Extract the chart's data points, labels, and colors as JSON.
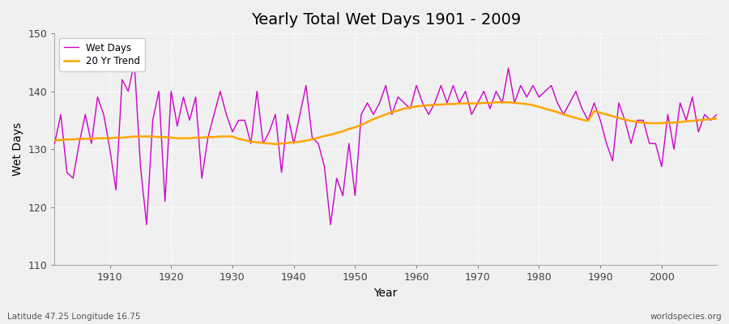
{
  "title": "Yearly Total Wet Days 1901 - 2009",
  "xlabel": "Year",
  "ylabel": "Wet Days",
  "lat_lon_label": "Latitude 47.25 Longitude 16.75",
  "watermark": "worldspecies.org",
  "ylim": [
    110,
    150
  ],
  "xlim": [
    1901,
    2009
  ],
  "yticks": [
    110,
    120,
    130,
    140,
    150
  ],
  "xticks": [
    1910,
    1920,
    1930,
    1940,
    1950,
    1960,
    1970,
    1980,
    1990,
    2000
  ],
  "bg_color": "#f0f0f0",
  "plot_bg_color": "#f0f0f0",
  "wet_days_color": "#cc00cc",
  "trend_color": "#ffa500",
  "wet_days_linewidth": 1.0,
  "trend_linewidth": 1.8,
  "wet_days": [
    131,
    136,
    126,
    125,
    131,
    136,
    131,
    139,
    136,
    130,
    123,
    142,
    140,
    145,
    127,
    117,
    135,
    140,
    121,
    140,
    134,
    139,
    135,
    139,
    125,
    132,
    136,
    140,
    136,
    133,
    135,
    135,
    131,
    140,
    131,
    133,
    136,
    126,
    136,
    131,
    136,
    141,
    132,
    131,
    127,
    117,
    125,
    122,
    131,
    122,
    136,
    138,
    136,
    138,
    141,
    136,
    139,
    138,
    137,
    141,
    138,
    136,
    138,
    141,
    138,
    141,
    138,
    140,
    136,
    138,
    140,
    137,
    140,
    138,
    144,
    138,
    141,
    139,
    141,
    139,
    140,
    141,
    138,
    136,
    138,
    140,
    137,
    135,
    138,
    135,
    131,
    128,
    138,
    135,
    131,
    135,
    135,
    131,
    131,
    127,
    136,
    130,
    138,
    135,
    139,
    133,
    136,
    135,
    136
  ],
  "trend": [
    131.5,
    131.6,
    131.7,
    131.7,
    131.8,
    131.8,
    131.8,
    131.9,
    131.9,
    131.9,
    132.0,
    132.0,
    132.1,
    132.2,
    132.2,
    132.2,
    132.2,
    132.1,
    132.1,
    132.0,
    131.9,
    131.9,
    131.9,
    132.0,
    132.0,
    132.1,
    132.1,
    132.2,
    132.2,
    132.2,
    131.8,
    131.6,
    131.3,
    131.2,
    131.1,
    131.0,
    130.9,
    131.0,
    131.1,
    131.2,
    131.3,
    131.5,
    131.7,
    132.0,
    132.3,
    132.5,
    132.8,
    133.1,
    133.5,
    133.8,
    134.2,
    134.7,
    135.2,
    135.6,
    136.0,
    136.4,
    136.7,
    137.0,
    137.2,
    137.4,
    137.5,
    137.6,
    137.7,
    137.7,
    137.8,
    137.8,
    137.9,
    137.9,
    137.9,
    137.9,
    138.0,
    138.0,
    138.1,
    138.1,
    138.1,
    138.0,
    137.9,
    137.8,
    137.6,
    137.3,
    137.0,
    136.7,
    136.4,
    136.0,
    135.7,
    135.4,
    135.1,
    134.9,
    136.6,
    136.3,
    136.0,
    135.7,
    135.4,
    135.1,
    134.9,
    134.7,
    134.6,
    134.5,
    134.5,
    134.5,
    134.6,
    134.6,
    134.7,
    134.8,
    134.9,
    135.0,
    135.1,
    135.2,
    135.3
  ]
}
